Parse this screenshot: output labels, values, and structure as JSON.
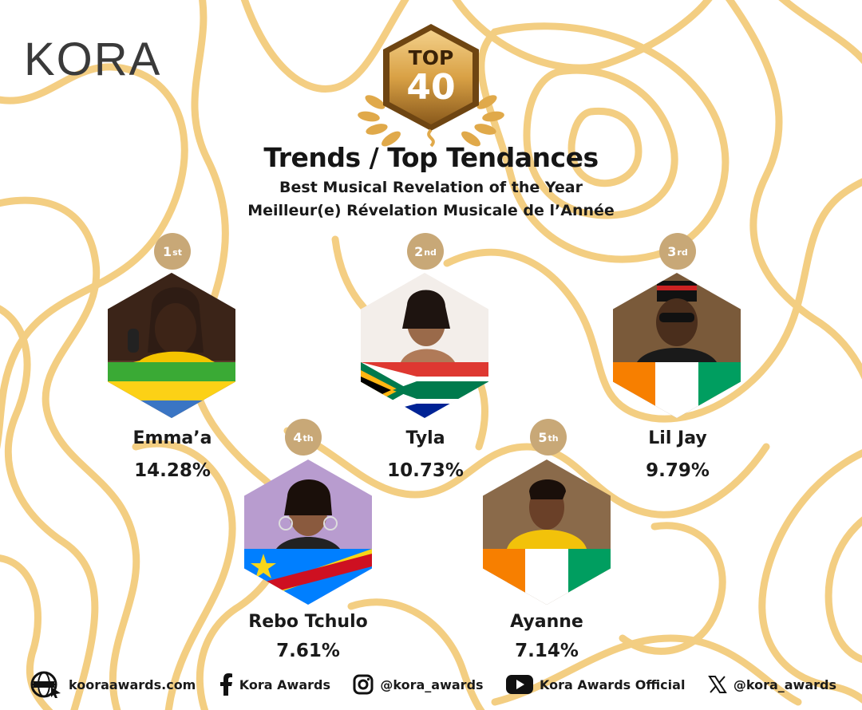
{
  "brand": {
    "logo_text": "KORA"
  },
  "badge": {
    "top_label": "TOP",
    "number": "40"
  },
  "header": {
    "title": "Trends / Top Tendances",
    "subtitle_en": "Best Musical Revelation of the Year",
    "subtitle_fr": "Meilleur(e) Révelation Musicale de l’Année"
  },
  "nominees": [
    {
      "rank_num": "1",
      "rank_suffix": "st",
      "name": "Emma’a",
      "percent": "14.28%",
      "flag": "gabon"
    },
    {
      "rank_num": "2",
      "rank_suffix": "nd",
      "name": "Tyla",
      "percent": "10.73%",
      "flag": "south-africa"
    },
    {
      "rank_num": "3",
      "rank_suffix": "rd",
      "name": "Lil Jay",
      "percent": "9.79%",
      "flag": "ivory-coast"
    },
    {
      "rank_num": "4",
      "rank_suffix": "th",
      "name": "Rebo Tchulo",
      "percent": "7.61%",
      "flag": "dr-congo"
    },
    {
      "rank_num": "5",
      "rank_suffix": "th",
      "name": "Ayanne",
      "percent": "7.14%",
      "flag": "ivory-coast"
    }
  ],
  "footer": {
    "website": "kooraawards.com",
    "facebook": "Kora Awards",
    "instagram": "@kora_awards",
    "youtube": "Kora Awards Official",
    "x": "@kora_awards"
  },
  "colors": {
    "gold": "#f2c66d",
    "rank_gold": "#c8a877",
    "badge_dark": "#8a5a1c",
    "badge_light": "#e9b860"
  }
}
